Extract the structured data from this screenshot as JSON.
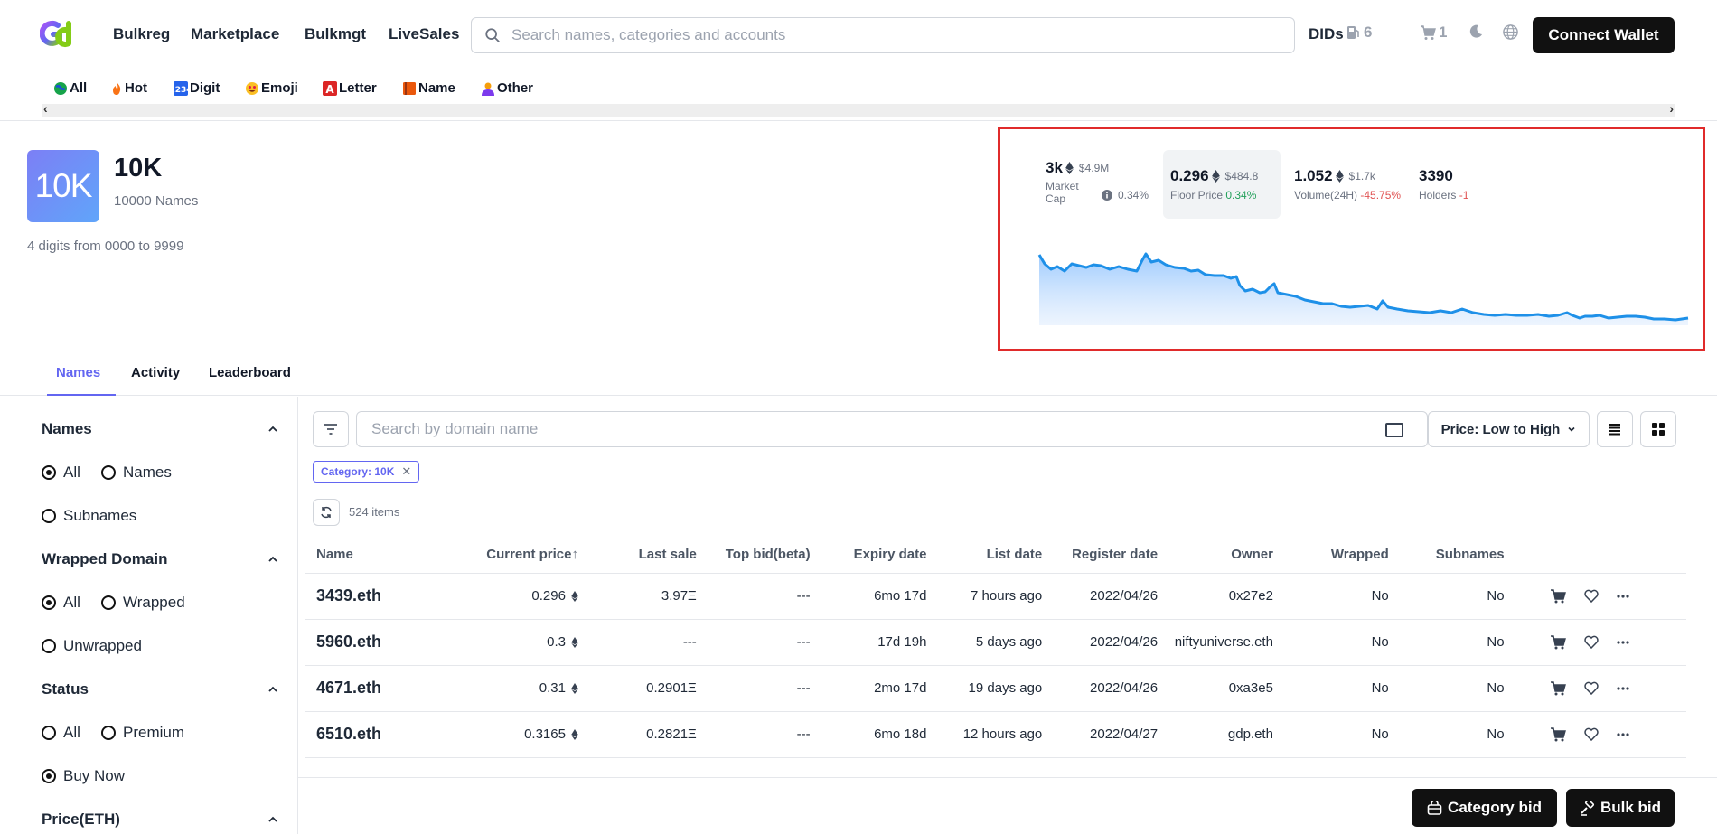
{
  "nav": {
    "links": [
      "Bulkreg",
      "Marketplace",
      "Bulkmgt",
      "LiveSales"
    ],
    "search_placeholder": "Search names, categories and accounts",
    "dids_label": "DIDs",
    "gas_count": "6",
    "cart_count": "1",
    "connect_label": "Connect Wallet"
  },
  "categories": [
    {
      "label": "All",
      "icon": "globe-icon"
    },
    {
      "label": "Hot",
      "icon": "fire-icon"
    },
    {
      "label": "Digit",
      "icon": "numbers-icon"
    },
    {
      "label": "Emoji",
      "icon": "smiley-icon"
    },
    {
      "label": "Letter",
      "icon": "letter-icon"
    },
    {
      "label": "Name",
      "icon": "book-icon"
    },
    {
      "label": "Other",
      "icon": "person-icon"
    }
  ],
  "collection": {
    "badge": "10K",
    "title": "10K",
    "subtitle": "10000 Names",
    "description": "4 digits from 0000 to 9999"
  },
  "stats": {
    "market_cap": {
      "value": "3k",
      "usd": "$4.9M",
      "label_line1": "Market",
      "label_line2": "Cap",
      "change": "0.34%"
    },
    "floor_price": {
      "value": "0.296",
      "usd": "$484.8",
      "label": "Floor Price",
      "change": "0.34%"
    },
    "volume": {
      "value": "1.052",
      "usd": "$1.7k",
      "label": "Volume(24H)",
      "change": "-45.75%"
    },
    "holders": {
      "value": "3390",
      "label": "Holders",
      "change": "-1"
    }
  },
  "tabs": [
    "Names",
    "Activity",
    "Leaderboard"
  ],
  "sidebar": {
    "names": {
      "title": "Names",
      "options": [
        "All",
        "Names",
        "Subnames"
      ],
      "selected": "All"
    },
    "wrapped": {
      "title": "Wrapped Domain",
      "options": [
        "All",
        "Wrapped",
        "Unwrapped"
      ],
      "selected": "All"
    },
    "status": {
      "title": "Status",
      "options": [
        "All",
        "Premium",
        "Buy Now"
      ],
      "selected": "Buy Now"
    },
    "price": {
      "title": "Price(ETH)"
    }
  },
  "list": {
    "search_placeholder": "Search by domain name",
    "sort_label": "Price: Low to High",
    "filter_chip": "Category: 10K",
    "items_count": "524 items",
    "columns": [
      "Name",
      "Current price",
      "Last sale",
      "Top bid(beta)",
      "Expiry date",
      "List date",
      "Register date",
      "Owner",
      "Wrapped",
      "Subnames"
    ],
    "rows": [
      {
        "name": "3439.eth",
        "price": "0.296",
        "last_sale": "3.97Ξ",
        "top_bid": "---",
        "expiry": "6mo 17d",
        "list_date": "7 hours ago",
        "register": "2022/04/26",
        "owner": "0x27e2",
        "wrapped": "No",
        "subnames": "No"
      },
      {
        "name": "5960.eth",
        "price": "0.3",
        "last_sale": "---",
        "top_bid": "---",
        "expiry": "17d 19h",
        "list_date": "5 days ago",
        "register": "2022/04/26",
        "owner": "niftyuniverse.eth",
        "wrapped": "No",
        "subnames": "No"
      },
      {
        "name": "4671.eth",
        "price": "0.31",
        "last_sale": "0.2901Ξ",
        "top_bid": "---",
        "expiry": "2mo 17d",
        "list_date": "19 days ago",
        "register": "2022/04/26",
        "owner": "0xa3e5",
        "wrapped": "No",
        "subnames": "No"
      },
      {
        "name": "6510.eth",
        "price": "0.3165",
        "last_sale": "0.2821Ξ",
        "top_bid": "---",
        "expiry": "6mo 18d",
        "list_date": "12 hours ago",
        "register": "2022/04/27",
        "owner": "gdp.eth",
        "wrapped": "No",
        "subnames": "No"
      }
    ]
  },
  "actions": {
    "category_bid": "Category bid",
    "bulk_bid": "Bulk bid"
  },
  "colors": {
    "accent": "#6366f1",
    "positive": "#22a05a",
    "negative": "#e05252",
    "sparkline": "#1e90e8"
  }
}
